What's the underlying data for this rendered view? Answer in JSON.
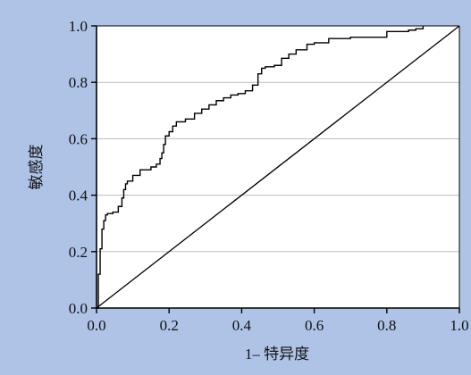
{
  "chart_data": {
    "type": "line",
    "xlabel": "1– 特异度",
    "ylabel": "敏感度",
    "xlim": [
      0,
      1
    ],
    "ylim": [
      0,
      1
    ],
    "x_ticks": [
      "0.0",
      "0.2",
      "0.4",
      "0.6",
      "0.8",
      "1.0"
    ],
    "y_ticks": [
      "0.0",
      "0.2",
      "0.4",
      "0.6",
      "0.8",
      "1.0"
    ],
    "grid": "horizontal",
    "colors": {
      "background": "#aec3e6",
      "plot_area": "#ffffff",
      "line": "#000000",
      "grid": "#bdbdbd"
    },
    "series": [
      {
        "x": [
          0,
          0.005,
          0.01,
          0.015,
          0.02,
          0.025,
          0.03,
          0.035,
          0.045,
          0.06,
          0.07,
          0.075,
          0.08,
          0.085,
          0.09,
          0.1,
          0.12,
          0.15,
          0.165,
          0.175,
          0.18,
          0.185,
          0.19,
          0.2,
          0.21,
          0.22,
          0.245,
          0.27,
          0.29,
          0.31,
          0.33,
          0.35,
          0.37,
          0.39,
          0.41,
          0.43,
          0.445,
          0.455,
          0.465,
          0.49,
          0.51,
          0.53,
          0.55,
          0.58,
          0.6,
          0.64,
          0.7,
          0.8,
          0.86,
          0.88,
          0.9
        ],
        "y": [
          0,
          0.12,
          0.21,
          0.28,
          0.31,
          0.33,
          0.335,
          0.335,
          0.34,
          0.36,
          0.39,
          0.42,
          0.44,
          0.45,
          0.45,
          0.47,
          0.49,
          0.5,
          0.51,
          0.53,
          0.55,
          0.58,
          0.61,
          0.625,
          0.645,
          0.66,
          0.67,
          0.69,
          0.705,
          0.72,
          0.735,
          0.745,
          0.755,
          0.76,
          0.77,
          0.79,
          0.83,
          0.85,
          0.855,
          0.86,
          0.885,
          0.9,
          0.915,
          0.935,
          0.94,
          0.955,
          0.96,
          0.98,
          0.985,
          0.99,
          1.0
        ]
      },
      {
        "x": [
          0,
          1
        ],
        "y": [
          0,
          1
        ]
      }
    ]
  }
}
